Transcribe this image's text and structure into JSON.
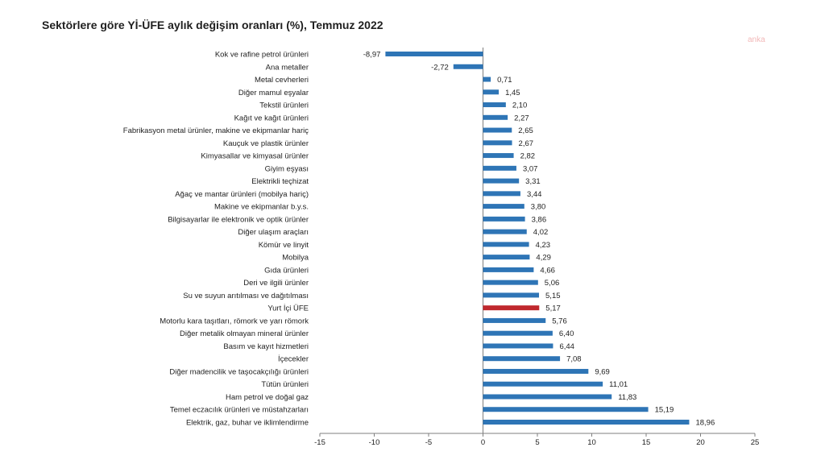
{
  "title": "Sektörlere göre Yİ-ÜFE aylık değişim oranları (%), Temmuz 2022",
  "watermark": "anka",
  "chart_data": {
    "type": "bar",
    "orientation": "horizontal",
    "title": "Sektörlere göre Yİ-ÜFE aylık değişim oranları (%), Temmuz 2022",
    "xlabel": "",
    "ylabel": "",
    "xlim": [
      -15,
      25
    ],
    "xticks": [
      -15,
      -10,
      -5,
      0,
      5,
      10,
      15,
      20,
      25
    ],
    "grid": false,
    "legend": "none",
    "colors": {
      "bar": "#2e75b6",
      "highlight": "#c0282d",
      "axis": "#7f7f7f"
    },
    "highlight_category": "Yurt İçi ÜFE",
    "categories": [
      "Kok ve rafine petrol ürünleri",
      "Ana metaller",
      "Metal cevherleri",
      "Diğer mamul eşyalar",
      "Tekstil ürünleri",
      "Kağıt ve kağıt ürünleri",
      "Fabrikasyon metal ürünler, makine ve ekipmanlar hariç",
      "Kauçuk ve plastik ürünler",
      "Kimyasallar ve kimyasal ürünler",
      "Giyim eşyası",
      "Elektrikli teçhizat",
      "Ağaç ve mantar ürünleri (mobilya hariç)",
      "Makine ve ekipmanlar b.y.s.",
      "Bilgisayarlar ile elektronik ve optik ürünler",
      "Diğer ulaşım araçları",
      "Kömür ve linyit",
      "Mobilya",
      "Gıda ürünleri",
      "Deri ve ilgili ürünler",
      "Su ve suyun arıtılması ve dağıtılması",
      "Yurt İçi ÜFE",
      "Motorlu kara taşıtları, römork ve yarı römork",
      "Diğer metalik olmayan mineral ürünler",
      "Basım ve kayıt hizmetleri",
      "İçecekler",
      "Diğer madencilik ve taşocakçılığı ürünleri",
      "Tütün ürünleri",
      "Ham petrol ve doğal gaz",
      "Temel eczacılık ürünleri ve müstahzarları",
      "Elektrik, gaz, buhar ve iklimlendirme"
    ],
    "values": [
      -8.97,
      -2.72,
      0.71,
      1.45,
      2.1,
      2.27,
      2.65,
      2.67,
      2.82,
      3.07,
      3.31,
      3.44,
      3.8,
      3.86,
      4.02,
      4.23,
      4.29,
      4.66,
      5.06,
      5.15,
      5.17,
      5.76,
      6.4,
      6.44,
      7.08,
      9.69,
      11.01,
      11.83,
      15.19,
      18.96
    ],
    "value_labels": [
      "-8,97",
      "-2,72",
      "0,71",
      "1,45",
      "2,10",
      "2,27",
      "2,65",
      "2,67",
      "2,82",
      "3,07",
      "3,31",
      "3,44",
      "3,80",
      "3,86",
      "4,02",
      "4,23",
      "4,29",
      "4,66",
      "5,06",
      "5,15",
      "5,17",
      "5,76",
      "6,40",
      "6,44",
      "7,08",
      "9,69",
      "11,01",
      "11,83",
      "15,19",
      "18,96"
    ]
  }
}
